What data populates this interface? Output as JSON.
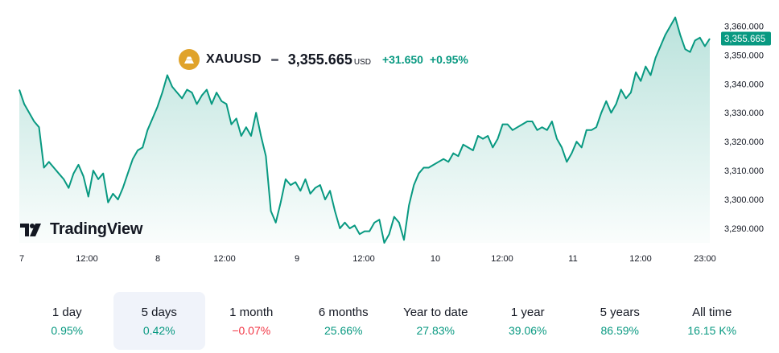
{
  "header": {
    "symbol": "XAUUSD",
    "price": "3,355.665",
    "currency": "USD",
    "change_abs": "+31.650",
    "change_pct": "+0.95%"
  },
  "branding": {
    "logo_text": "TradingView"
  },
  "colors": {
    "line": "#089981",
    "positive": "#089981",
    "negative": "#f23645",
    "icon": "#e0a32a",
    "active_bg": "#f0f3fa"
  },
  "chart_data": {
    "type": "area",
    "x_labels": [
      "7",
      "12:00",
      "8",
      "12:00",
      "9",
      "12:00",
      "10",
      "12:00",
      "11",
      "12:00",
      "23:00"
    ],
    "y_ticks": [
      "3,290.000",
      "3,300.000",
      "3,310.000",
      "3,320.000",
      "3,330.000",
      "3,340.000",
      "3,350.000",
      "3,360.000"
    ],
    "y_tick_values": [
      3290,
      3300,
      3310,
      3320,
      3330,
      3340,
      3350,
      3360
    ],
    "ylim": [
      3285,
      3364
    ],
    "last_value_label": "3,355.665",
    "last_value": 3355.665,
    "series": [
      {
        "values": [
          3338,
          3333,
          3330,
          3327,
          3325,
          3311,
          3313,
          3311,
          3309,
          3307,
          3304,
          3309,
          3312,
          3308,
          3301,
          3310,
          3307,
          3309,
          3299,
          3302,
          3300,
          3304,
          3309,
          3314,
          3317,
          3318,
          3324,
          3328,
          3332,
          3337,
          3343,
          3339,
          3337,
          3335,
          3338,
          3337,
          3333,
          3336,
          3338,
          3333,
          3337,
          3334,
          3333,
          3326,
          3328,
          3322,
          3325,
          3322,
          3330,
          3322,
          3315,
          3296,
          3292,
          3299,
          3307,
          3305,
          3306,
          3303,
          3307,
          3302,
          3304,
          3305,
          3300,
          3303,
          3296,
          3290,
          3292,
          3290,
          3291,
          3288,
          3289,
          3289,
          3292,
          3293,
          3285,
          3288,
          3294,
          3292,
          3286,
          3298,
          3305,
          3309,
          3311,
          3311,
          3312,
          3313,
          3314,
          3313,
          3316,
          3315,
          3319,
          3318,
          3317,
          3322,
          3321,
          3322,
          3318,
          3321,
          3326,
          3326,
          3324,
          3325,
          3326,
          3327,
          3327,
          3324,
          3325,
          3324,
          3327,
          3321,
          3318,
          3313,
          3316,
          3320,
          3318,
          3324,
          3324,
          3325,
          3330,
          3334,
          3330,
          3333,
          3338,
          3335,
          3337,
          3344,
          3341,
          3346,
          3343,
          3349,
          3353,
          3357,
          3360,
          3363,
          3357,
          3352,
          3351,
          3355,
          3356,
          3353,
          3355.665
        ]
      }
    ],
    "title": "",
    "xlabel": "",
    "ylabel": "",
    "grid": false,
    "legend": "none"
  },
  "periods": [
    {
      "label": "1 day",
      "value": "0.95%",
      "sign": "pos",
      "active": false
    },
    {
      "label": "5 days",
      "value": "0.42%",
      "sign": "pos",
      "active": true
    },
    {
      "label": "1 month",
      "value": "−0.07%",
      "sign": "neg",
      "active": false
    },
    {
      "label": "6 months",
      "value": "25.66%",
      "sign": "pos",
      "active": false
    },
    {
      "label": "Year to date",
      "value": "27.83%",
      "sign": "pos",
      "active": false
    },
    {
      "label": "1 year",
      "value": "39.06%",
      "sign": "pos",
      "active": false
    },
    {
      "label": "5 years",
      "value": "86.59%",
      "sign": "pos",
      "active": false
    },
    {
      "label": "All time",
      "value": "16.15 K%",
      "sign": "pos",
      "active": false
    }
  ]
}
